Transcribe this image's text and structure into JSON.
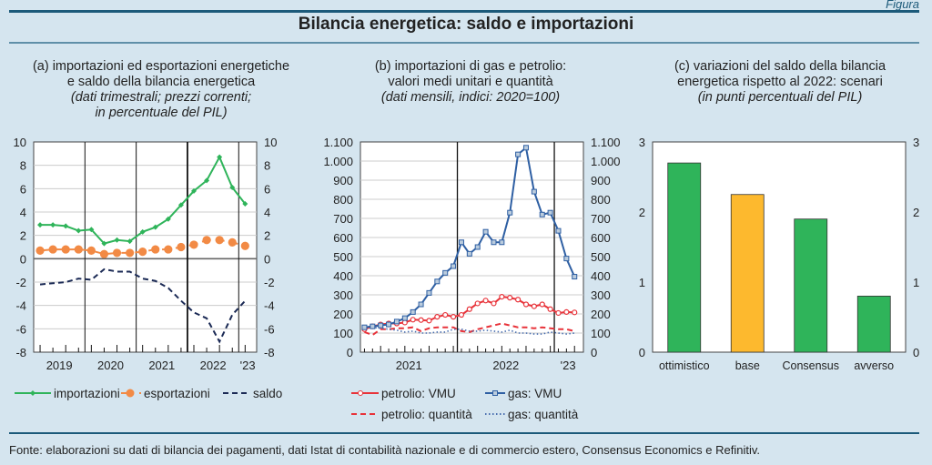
{
  "header": {
    "figure_label": "Figura",
    "title": "Bilancia energetica: saldo e importazioni"
  },
  "footer": "Fonte: elaborazioni su dati di bilancia dei pagamenti, dati Istat di contabilità nazionale e di commercio estero, Consensus Economics e Refinitiv.",
  "chart_data": [
    {
      "type": "line",
      "title_lines": [
        "(a) importazioni ed esportazioni energetiche",
        "e saldo della bilancia energetica"
      ],
      "subtitle_lines": [
        "(dati trimestrali; prezzi correnti;",
        "in percentuale del PIL)"
      ],
      "x_labels": [
        "2019",
        "2020",
        "2021",
        "2022",
        "'23"
      ],
      "frequency": "quarterly",
      "x_range": [
        "2019 Q1",
        "2023 Q1"
      ],
      "ylim": [
        -8,
        10
      ],
      "yticks": [
        -8,
        -6,
        -4,
        -2,
        0,
        2,
        4,
        6,
        8,
        10
      ],
      "grid": true,
      "series": [
        {
          "name": "importazioni",
          "color": "#2fb45a",
          "style": "solid-diamond",
          "values": [
            2.9,
            2.9,
            2.8,
            2.4,
            2.5,
            1.3,
            1.6,
            1.5,
            2.3,
            2.7,
            3.4,
            4.6,
            5.8,
            6.7,
            8.7,
            6.1,
            4.7
          ]
        },
        {
          "name": "esportazioni",
          "color": "#f28a45",
          "style": "dash-dot-circle",
          "values": [
            0.7,
            0.8,
            0.8,
            0.8,
            0.7,
            0.4,
            0.5,
            0.5,
            0.6,
            0.8,
            0.8,
            1.0,
            1.2,
            1.6,
            1.6,
            1.4,
            1.1
          ]
        },
        {
          "name": "saldo",
          "color": "#1b2a55",
          "style": "dashed",
          "values": [
            -2.2,
            -2.1,
            -2.0,
            -1.7,
            -1.8,
            -0.9,
            -1.1,
            -1.1,
            -1.7,
            -1.9,
            -2.5,
            -3.6,
            -4.6,
            -5.1,
            -7.1,
            -4.8,
            -3.6
          ]
        }
      ]
    },
    {
      "type": "line",
      "title_lines": [
        "(b)  importazioni di gas e petrolio:",
        "valori medi unitari e quantità"
      ],
      "subtitle_lines": [
        "(dati mensili, indici: 2020=100)"
      ],
      "x_labels": [
        "2021",
        "2022",
        "'23"
      ],
      "frequency": "monthly",
      "x_range": [
        "2021-01",
        "2023-03"
      ],
      "ylim": [
        0,
        1100
      ],
      "yticks": [
        0,
        100,
        200,
        300,
        400,
        500,
        600,
        700,
        800,
        900,
        1000,
        1100
      ],
      "ytick_labels": [
        "0",
        "100",
        "200",
        "300",
        "400",
        "500",
        "600",
        "700",
        "800",
        "900",
        "1.000",
        "1.100"
      ],
      "grid": true,
      "series": [
        {
          "name": "petrolio: VMU",
          "color": "#e8333a",
          "style": "solid-circle",
          "values": [
            120,
            135,
            145,
            150,
            150,
            155,
            170,
            168,
            165,
            185,
            195,
            185,
            195,
            225,
            255,
            270,
            255,
            290,
            285,
            275,
            250,
            240,
            250,
            225,
            205,
            210,
            208
          ]
        },
        {
          "name": "gas: VMU",
          "color": "#2e5fa3",
          "style": "solid-square",
          "values": [
            130,
            135,
            140,
            145,
            160,
            178,
            210,
            250,
            310,
            370,
            415,
            450,
            575,
            515,
            550,
            630,
            575,
            575,
            730,
            1035,
            1070,
            840,
            720,
            730,
            635,
            490,
            395
          ]
        },
        {
          "name": "petrolio: quantità",
          "color": "#e8333a",
          "style": "dashed",
          "values": [
            105,
            90,
            120,
            120,
            125,
            125,
            130,
            110,
            125,
            130,
            130,
            130,
            110,
            105,
            120,
            130,
            140,
            150,
            140,
            130,
            130,
            125,
            130,
            125,
            120,
            120,
            110
          ]
        },
        {
          "name": "gas: quantità",
          "color": "#4a6fb0",
          "style": "dotted",
          "values": [
            125,
            130,
            125,
            120,
            115,
            105,
            110,
            100,
            100,
            105,
            105,
            120,
            120,
            110,
            110,
            115,
            110,
            105,
            115,
            100,
            100,
            95,
            95,
            105,
            100,
            95,
            100
          ]
        }
      ]
    },
    {
      "type": "bar",
      "title_lines": [
        "(c) variazioni del saldo della bilancia",
        "energetica rispetto al 2022: scenari"
      ],
      "subtitle_lines": [
        "(in punti percentuali del PIL)"
      ],
      "categories": [
        "ottimistico",
        "base",
        "Consensus",
        "avverso"
      ],
      "values": [
        2.7,
        2.25,
        1.9,
        0.8
      ],
      "colors": [
        "#2fb45a",
        "#fdb92e",
        "#2fb45a",
        "#2fb45a"
      ],
      "ylim": [
        0,
        3
      ],
      "yticks": [
        0,
        1,
        2,
        3
      ],
      "grid": false
    }
  ]
}
